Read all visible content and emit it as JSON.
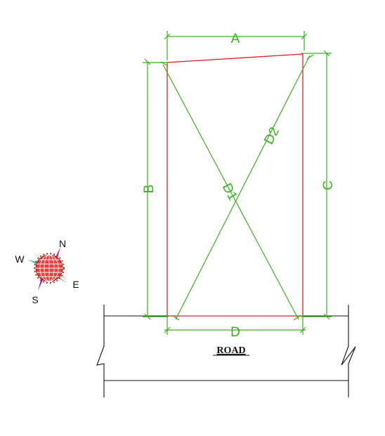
{
  "labels": {
    "A": "A",
    "B": "B",
    "C": "C",
    "D": "D",
    "D1": "D1",
    "D2": "D2",
    "road": "ROAD"
  },
  "compass": {
    "north": "N",
    "south": "S",
    "east": "E",
    "west": "W"
  },
  "colors": {
    "dimension": "#34b31a",
    "plot_boundary": "#e0202a",
    "road": "#111111"
  }
}
